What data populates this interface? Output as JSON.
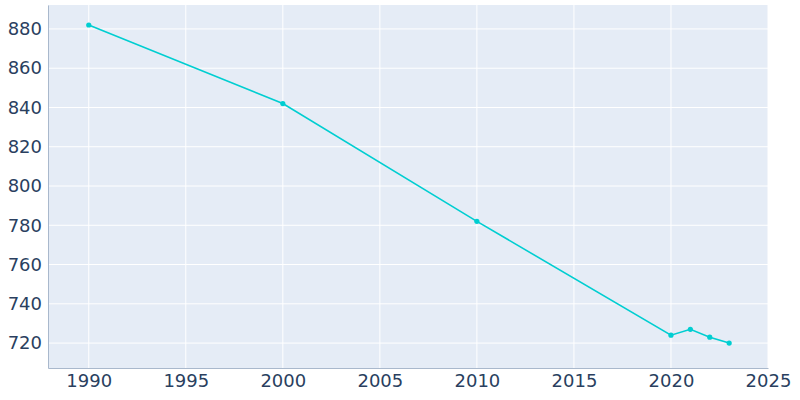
{
  "chart_data": {
    "type": "line",
    "x": [
      1990,
      2000,
      2010,
      2020,
      2021,
      2022,
      2023
    ],
    "values": [
      882,
      842,
      782,
      724,
      727,
      723,
      720
    ],
    "color": "#00ced1",
    "marker": "circle",
    "xlim": [
      1987.9,
      2025
    ],
    "ylim": [
      707.3,
      892.2
    ],
    "xticks": [
      1990,
      1995,
      2000,
      2005,
      2010,
      2015,
      2020,
      2025
    ],
    "yticks": [
      720,
      740,
      760,
      780,
      800,
      820,
      840,
      860,
      880
    ],
    "grid": true
  }
}
